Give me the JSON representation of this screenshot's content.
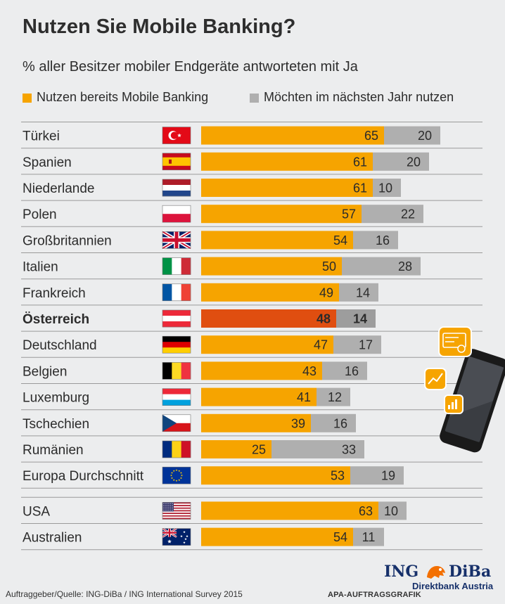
{
  "header": {
    "title": "Nutzen Sie Mobile Banking?",
    "subtitle": "% aller Besitzer mobiler Endgeräte antworteten mit Ja"
  },
  "colors": {
    "already": "#f6a400",
    "planned": "#afafaf",
    "highlight_already": "#e04e10",
    "highlight_planned": "#9d9d9d",
    "row_line": "#9a9a9a"
  },
  "chart_data": {
    "type": "bar",
    "orientation": "horizontal",
    "stacked": true,
    "categories": [
      "Türkei",
      "Spanien",
      "Niederlande",
      "Polen",
      "Großbritannien",
      "Italien",
      "Frankreich",
      "Österreich",
      "Deutschland",
      "Belgien",
      "Luxemburg",
      "Tschechien",
      "Rumänien",
      "Europa Durchschnitt",
      "USA",
      "Australien"
    ],
    "series": [
      {
        "name": "Nutzen bereits Mobile Banking",
        "color": "#f6a400",
        "values": [
          65,
          61,
          61,
          57,
          54,
          50,
          49,
          48,
          47,
          43,
          41,
          39,
          25,
          53,
          63,
          54
        ]
      },
      {
        "name": "Möchten im nächsten Jahr nutzen",
        "color": "#afafaf",
        "values": [
          20,
          20,
          10,
          22,
          16,
          28,
          14,
          14,
          17,
          16,
          12,
          16,
          33,
          19,
          10,
          11
        ]
      }
    ],
    "highlight": "Österreich",
    "flags": [
      "turkey-flag",
      "spain-flag",
      "netherlands-flag",
      "poland-flag",
      "uk-flag",
      "italy-flag",
      "france-flag",
      "austria-flag",
      "germany-flag",
      "belgium-flag",
      "luxembourg-flag",
      "czechia-flag",
      "romania-flag",
      "eu-flag",
      "usa-flag",
      "australia-flag"
    ],
    "legend_position": "top",
    "grid": false
  },
  "footer": {
    "source": "Auftraggeber/Quelle: ING-DiBa / ING International Survey 2015",
    "agency": "APA-AUFTRAGSGRAFIK",
    "logo_ing": "ING",
    "logo_diba": "DiBa",
    "logo_sub": "Direktbank Austria"
  }
}
